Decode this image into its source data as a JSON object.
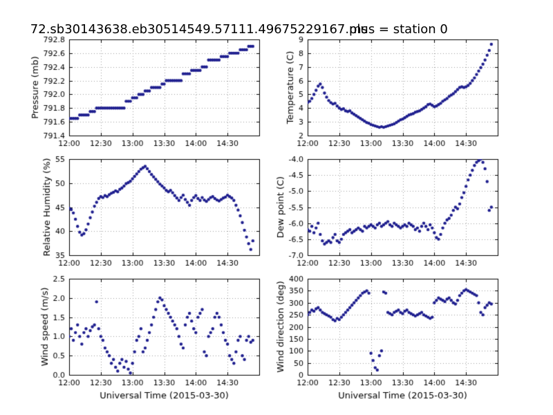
{
  "figure": {
    "title_left": "72.sb30143638.eb30514549.57111.49675229167.ms",
    "title_right": "plus = station 0",
    "background": "#ffffff",
    "marker_color": "#1f1f8f",
    "grid_color": "#9a9a9a",
    "xlabel": "Universal Time (2015-03-30)",
    "x_ticks": [
      "12:00",
      "12:30",
      "13:00",
      "13:30",
      "14:00",
      "14:30"
    ],
    "x_tick_minutes": [
      0,
      30,
      60,
      90,
      120,
      150
    ],
    "x_range_min": [
      0,
      180
    ],
    "x_start_min": 0,
    "x_step_min": 2
  },
  "chart_data": [
    {
      "type": "scatter",
      "ylabel": "Pressure (mb)",
      "xlabel": "",
      "ylim": [
        791.4,
        792.8
      ],
      "yticks": [
        791.4,
        791.6,
        791.8,
        792.0,
        792.2,
        792.4,
        792.6,
        792.8
      ],
      "ytick_labels": [
        "791.4",
        "791.6",
        "791.8",
        "792.0",
        "792.2",
        "792.4",
        "792.6",
        "792.8"
      ],
      "values": [
        791.65,
        791.65,
        791.65,
        791.65,
        791.65,
        791.7,
        791.7,
        791.7,
        791.7,
        791.7,
        791.75,
        791.75,
        791.75,
        791.8,
        791.8,
        791.8,
        791.8,
        791.8,
        791.8,
        791.8,
        791.8,
        791.8,
        791.8,
        791.8,
        791.8,
        791.8,
        791.8,
        791.9,
        791.9,
        791.9,
        791.95,
        791.95,
        791.95,
        792.0,
        792.0,
        792.0,
        792.05,
        792.05,
        792.05,
        792.1,
        792.1,
        792.1,
        792.1,
        792.1,
        792.15,
        792.15,
        792.2,
        792.2,
        792.2,
        792.2,
        792.2,
        792.2,
        792.2,
        792.2,
        792.3,
        792.3,
        792.3,
        792.3,
        792.35,
        792.35,
        792.35,
        792.35,
        792.35,
        792.4,
        792.4,
        792.4,
        792.5,
        792.5,
        792.5,
        792.5,
        792.5,
        792.5,
        792.55,
        792.55,
        792.55,
        792.55,
        792.6,
        792.6,
        792.6,
        792.6,
        792.6,
        792.65,
        792.65,
        792.65,
        792.65,
        792.7,
        792.7,
        792.7
      ]
    },
    {
      "type": "scatter",
      "ylabel": "Temperature (C)",
      "xlabel": "",
      "ylim": [
        2,
        9
      ],
      "yticks": [
        2,
        3,
        4,
        5,
        6,
        7,
        8,
        9
      ],
      "ytick_labels": [
        "2",
        "3",
        "4",
        "5",
        "6",
        "7",
        "8",
        "9"
      ],
      "values": [
        4.4,
        4.5,
        4.7,
        5.0,
        5.3,
        5.6,
        5.75,
        5.5,
        5.1,
        4.8,
        4.55,
        4.4,
        4.3,
        4.35,
        4.15,
        4.0,
        3.9,
        3.95,
        3.8,
        3.75,
        3.8,
        3.65,
        3.55,
        3.45,
        3.35,
        3.25,
        3.15,
        3.05,
        2.95,
        2.9,
        2.8,
        2.75,
        2.7,
        2.65,
        2.6,
        2.65,
        2.6,
        2.65,
        2.7,
        2.75,
        2.8,
        2.85,
        2.95,
        3.05,
        3.15,
        3.2,
        3.3,
        3.4,
        3.5,
        3.55,
        3.6,
        3.7,
        3.75,
        3.8,
        3.9,
        4.0,
        4.1,
        4.25,
        4.3,
        4.2,
        4.1,
        4.15,
        4.25,
        4.35,
        4.5,
        4.6,
        4.7,
        4.85,
        4.95,
        5.05,
        5.2,
        5.35,
        5.5,
        5.55,
        5.5,
        5.55,
        5.65,
        5.8,
        6.0,
        6.2,
        6.45,
        6.7,
        6.95,
        7.2,
        7.5,
        7.85,
        8.2,
        8.65
      ]
    },
    {
      "type": "scatter",
      "ylabel": "Relative Humidity (%)",
      "xlabel": "",
      "ylim": [
        35,
        55
      ],
      "yticks": [
        35,
        40,
        45,
        50,
        55
      ],
      "ytick_labels": [
        "35",
        "40",
        "45",
        "50",
        "55"
      ],
      "values": [
        44.8,
        44.5,
        43.8,
        42.5,
        41.0,
        39.8,
        39.2,
        39.5,
        40.3,
        41.5,
        42.8,
        44.0,
        45.2,
        46.0,
        46.8,
        47.2,
        47.0,
        47.4,
        47.2,
        47.6,
        47.9,
        48.1,
        48.4,
        48.2,
        48.7,
        49.0,
        49.4,
        49.9,
        50.1,
        50.4,
        50.9,
        51.4,
        51.9,
        52.4,
        52.9,
        53.2,
        53.5,
        53.0,
        52.4,
        51.8,
        51.3,
        50.8,
        50.3,
        49.8,
        49.4,
        49.0,
        48.5,
        48.2,
        48.5,
        48.0,
        47.4,
        46.9,
        46.4,
        47.0,
        47.5,
        46.6,
        46.0,
        45.4,
        46.4,
        47.0,
        47.4,
        46.8,
        46.4,
        47.0,
        46.5,
        46.2,
        46.6,
        47.0,
        47.2,
        46.8,
        46.5,
        46.3,
        46.6,
        46.9,
        47.1,
        47.5,
        47.2,
        46.9,
        46.4,
        45.4,
        44.4,
        43.2,
        41.8,
        40.2,
        38.8,
        37.4,
        36.2,
        38.0
      ]
    },
    {
      "type": "scatter",
      "ylabel": "Dew point (C)",
      "xlabel": "",
      "ylim": [
        -7,
        -4
      ],
      "yticks": [
        -7,
        -6.5,
        -6,
        -5.5,
        -5,
        -4.5,
        -4
      ],
      "ytick_labels": [
        "-7.0",
        "-6.5",
        "-6.0",
        "-5.5",
        "-5.0",
        "-4.5",
        "-4.0"
      ],
      "values": [
        -6.2,
        -6.25,
        -6.1,
        -6.3,
        -6.15,
        -6.0,
        -6.35,
        -6.55,
        -6.65,
        -6.6,
        -6.55,
        -6.6,
        -6.45,
        -6.35,
        -6.55,
        -6.6,
        -6.5,
        -6.35,
        -6.3,
        -6.25,
        -6.2,
        -6.3,
        -6.25,
        -6.2,
        -6.15,
        -6.2,
        -6.25,
        -6.1,
        -6.15,
        -6.1,
        -6.05,
        -6.1,
        -6.15,
        -6.05,
        -6.0,
        -6.1,
        -6.05,
        -6.0,
        -5.95,
        -6.05,
        -6.1,
        -6.0,
        -6.05,
        -6.1,
        -6.15,
        -6.1,
        -6.05,
        -6.1,
        -6.0,
        -6.05,
        -6.1,
        -6.2,
        -6.15,
        -6.25,
        -6.1,
        -6.0,
        -6.1,
        -6.2,
        -6.05,
        -6.15,
        -6.3,
        -6.45,
        -6.5,
        -6.35,
        -6.15,
        -6.0,
        -5.9,
        -5.85,
        -5.75,
        -5.6,
        -5.5,
        -5.55,
        -5.4,
        -5.2,
        -5.05,
        -4.85,
        -4.65,
        -4.5,
        -4.35,
        -4.2,
        -4.1,
        -4.05,
        -4.0,
        -4.1,
        -4.3,
        -4.7,
        -5.6,
        -5.5
      ]
    },
    {
      "type": "scatter",
      "ylabel": "Wind speed (m/s)",
      "xlabel": "Universal Time (2015-03-30)",
      "ylim": [
        0,
        2.5
      ],
      "yticks": [
        0,
        0.5,
        1,
        1.5,
        2,
        2.5
      ],
      "ytick_labels": [
        "0.0",
        "0.5",
        "1.0",
        "1.5",
        "2.0",
        "2.5"
      ],
      "values": [
        1.0,
        1.2,
        0.9,
        1.1,
        1.3,
        1.0,
        0.8,
        1.1,
        1.2,
        1.0,
        1.15,
        1.25,
        1.3,
        1.9,
        1.2,
        1.0,
        0.9,
        0.7,
        0.6,
        0.5,
        0.3,
        0.4,
        0.2,
        0.1,
        0.3,
        0.4,
        0.2,
        0.35,
        0.15,
        0.05,
        0.3,
        0.6,
        0.9,
        1.0,
        1.2,
        0.6,
        0.7,
        0.9,
        1.1,
        1.3,
        1.5,
        1.7,
        1.9,
        2.0,
        1.95,
        1.8,
        1.7,
        1.6,
        1.5,
        1.4,
        1.3,
        1.2,
        1.0,
        0.8,
        0.7,
        1.3,
        1.5,
        1.6,
        1.4,
        1.2,
        1.1,
        1.5,
        1.6,
        1.7,
        0.6,
        0.5,
        1.0,
        1.1,
        1.2,
        1.5,
        1.6,
        1.5,
        1.3,
        1.1,
        0.9,
        0.8,
        0.5,
        0.4,
        0.3,
        0.6,
        0.9,
        1.0,
        0.5,
        0.4,
        0.9,
        1.0,
        0.85,
        0.9
      ]
    },
    {
      "type": "scatter",
      "ylabel": "Wind direction (deg)",
      "xlabel": "Universal Time (2015-03-30)",
      "ylim": [
        0,
        400
      ],
      "yticks": [
        0,
        50,
        100,
        150,
        200,
        250,
        300,
        350,
        400
      ],
      "ytick_labels": [
        "0",
        "50",
        "100",
        "150",
        "200",
        "250",
        "300",
        "350",
        "400"
      ],
      "values": [
        250,
        260,
        270,
        265,
        275,
        280,
        270,
        260,
        255,
        250,
        245,
        240,
        230,
        225,
        235,
        230,
        240,
        250,
        260,
        270,
        280,
        290,
        300,
        310,
        320,
        330,
        340,
        345,
        350,
        340,
        90,
        60,
        30,
        20,
        80,
        100,
        345,
        340,
        260,
        255,
        250,
        260,
        265,
        270,
        260,
        255,
        265,
        270,
        260,
        255,
        250,
        245,
        250,
        255,
        260,
        250,
        245,
        240,
        235,
        240,
        300,
        310,
        320,
        315,
        310,
        305,
        315,
        320,
        310,
        300,
        295,
        310,
        330,
        340,
        350,
        355,
        350,
        345,
        340,
        335,
        330,
        300,
        260,
        250,
        280,
        290,
        300,
        295
      ]
    }
  ]
}
